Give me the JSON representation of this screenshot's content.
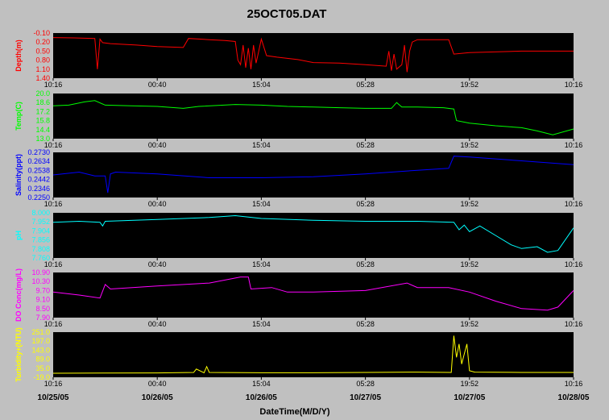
{
  "chart_data": {
    "type": "line",
    "title": "25OCT05.DAT",
    "xlabel": "DateTime(M/D/Y)",
    "date_labels": [
      "10/25/05",
      "10/26/05",
      "10/26/05",
      "10/27/05",
      "10/27/05",
      "10/28/05"
    ],
    "panel_time_ticks": [
      "10:16",
      "00:40",
      "15:04",
      "05:28",
      "19:52",
      "10:16"
    ],
    "grid": false,
    "panels": [
      {
        "ylabel": "Depth(m)",
        "color": "#ff0000",
        "inverted": true,
        "ylim": [
          -0.1,
          1.4
        ],
        "yticks": [
          "-0.10",
          "0.20",
          "0.50",
          "0.80",
          "1.10",
          "1.40"
        ],
        "x": [
          0,
          0.04,
          0.08,
          0.085,
          0.09,
          0.095,
          0.11,
          0.16,
          0.2,
          0.25,
          0.26,
          0.3,
          0.33,
          0.35,
          0.355,
          0.36,
          0.365,
          0.37,
          0.375,
          0.38,
          0.385,
          0.39,
          0.395,
          0.4,
          0.41,
          0.43,
          0.47,
          0.5,
          0.55,
          0.6,
          0.64,
          0.645,
          0.65,
          0.655,
          0.66,
          0.67,
          0.675,
          0.68,
          0.685,
          0.69,
          0.7,
          0.76,
          0.77,
          0.8,
          0.9,
          1.0
        ],
        "y": [
          0.05,
          0.06,
          0.08,
          1.1,
          0.1,
          0.22,
          0.25,
          0.3,
          0.35,
          0.38,
          0.08,
          0.12,
          0.15,
          0.18,
          0.8,
          0.95,
          0.3,
          1.05,
          0.4,
          1.1,
          0.3,
          0.9,
          0.5,
          0.1,
          0.65,
          0.7,
          0.78,
          0.88,
          0.9,
          0.95,
          1.0,
          0.5,
          1.15,
          0.6,
          1.1,
          0.95,
          0.3,
          1.2,
          0.5,
          0.2,
          0.12,
          0.12,
          0.6,
          0.55,
          0.5,
          0.5
        ]
      },
      {
        "ylabel": "Temp(C)",
        "color": "#00ff00",
        "ylim": [
          13.0,
          20.0
        ],
        "yticks": [
          "13.0",
          "14.4",
          "15.8",
          "17.2",
          "18.6",
          "20.0"
        ],
        "x": [
          0,
          0.03,
          0.06,
          0.08,
          0.1,
          0.15,
          0.2,
          0.25,
          0.28,
          0.35,
          0.4,
          0.45,
          0.5,
          0.55,
          0.6,
          0.65,
          0.66,
          0.67,
          0.7,
          0.75,
          0.77,
          0.775,
          0.8,
          0.85,
          0.9,
          0.93,
          0.96,
          1.0
        ],
        "y": [
          18.1,
          18.2,
          18.7,
          18.9,
          18.2,
          18.1,
          18.0,
          17.7,
          18.0,
          18.3,
          18.2,
          18.0,
          17.9,
          17.8,
          17.7,
          17.7,
          18.6,
          17.9,
          17.9,
          17.8,
          17.6,
          15.8,
          15.4,
          15.0,
          14.7,
          14.2,
          13.6,
          14.5
        ]
      },
      {
        "ylabel": "Salinity(ppt)",
        "color": "#0000ff",
        "ylim": [
          0.225,
          0.273
        ],
        "yticks": [
          "0.2250",
          "0.2346",
          "0.2442",
          "0.2538",
          "0.2634",
          "0.2730"
        ],
        "x": [
          0,
          0.05,
          0.08,
          0.1,
          0.105,
          0.11,
          0.12,
          0.2,
          0.3,
          0.4,
          0.5,
          0.6,
          0.7,
          0.76,
          0.77,
          0.8,
          0.9,
          1.0
        ],
        "y": [
          0.249,
          0.252,
          0.248,
          0.248,
          0.23,
          0.25,
          0.252,
          0.25,
          0.246,
          0.246,
          0.247,
          0.25,
          0.254,
          0.256,
          0.269,
          0.268,
          0.264,
          0.26
        ]
      },
      {
        "ylabel": "pH",
        "color": "#00ffff",
        "ylim": [
          7.76,
          8.0
        ],
        "yticks": [
          "7.760",
          "7.808",
          "7.856",
          "7.904",
          "7.952",
          "8.000"
        ],
        "x": [
          0,
          0.05,
          0.09,
          0.095,
          0.1,
          0.2,
          0.3,
          0.35,
          0.4,
          0.5,
          0.6,
          0.7,
          0.77,
          0.78,
          0.79,
          0.8,
          0.82,
          0.85,
          0.88,
          0.9,
          0.93,
          0.95,
          0.97,
          1.0
        ],
        "y": [
          7.95,
          7.955,
          7.95,
          7.93,
          7.955,
          7.965,
          7.975,
          7.985,
          7.97,
          7.96,
          7.955,
          7.955,
          7.95,
          7.91,
          7.935,
          7.9,
          7.93,
          7.88,
          7.83,
          7.81,
          7.82,
          7.79,
          7.8,
          7.92
        ]
      },
      {
        "ylabel": "DO Conc(mg/L)",
        "color": "#ff00ff",
        "ylim": [
          7.9,
          10.9
        ],
        "yticks": [
          "7.90",
          "8.50",
          "9.10",
          "9.70",
          "10.30",
          "10.90"
        ],
        "x": [
          0,
          0.05,
          0.09,
          0.1,
          0.11,
          0.2,
          0.3,
          0.36,
          0.375,
          0.38,
          0.42,
          0.45,
          0.5,
          0.6,
          0.68,
          0.7,
          0.76,
          0.8,
          0.85,
          0.9,
          0.95,
          0.97,
          1.0
        ],
        "y": [
          9.6,
          9.4,
          9.2,
          10.1,
          9.8,
          10.0,
          10.2,
          10.6,
          10.6,
          9.8,
          9.9,
          9.6,
          9.6,
          9.7,
          10.2,
          9.9,
          9.9,
          9.6,
          9.0,
          8.5,
          8.4,
          8.6,
          9.7
        ]
      },
      {
        "ylabel": "Turbidity+(NTU)",
        "color": "#ffff00",
        "ylim": [
          -19.0,
          251.0
        ],
        "yticks": [
          "-19.0",
          "35.0",
          "89.0",
          "143.0",
          "197.0",
          "251.0"
        ],
        "x": [
          0,
          0.1,
          0.2,
          0.27,
          0.275,
          0.29,
          0.295,
          0.3,
          0.4,
          0.5,
          0.6,
          0.7,
          0.765,
          0.77,
          0.775,
          0.78,
          0.785,
          0.79,
          0.795,
          0.8,
          0.81,
          0.9,
          1.0
        ],
        "y": [
          5,
          6,
          7,
          10,
          30,
          8,
          45,
          10,
          8,
          8,
          10,
          12,
          10,
          230,
          100,
          180,
          60,
          120,
          180,
          20,
          12,
          10,
          10
        ]
      }
    ]
  }
}
